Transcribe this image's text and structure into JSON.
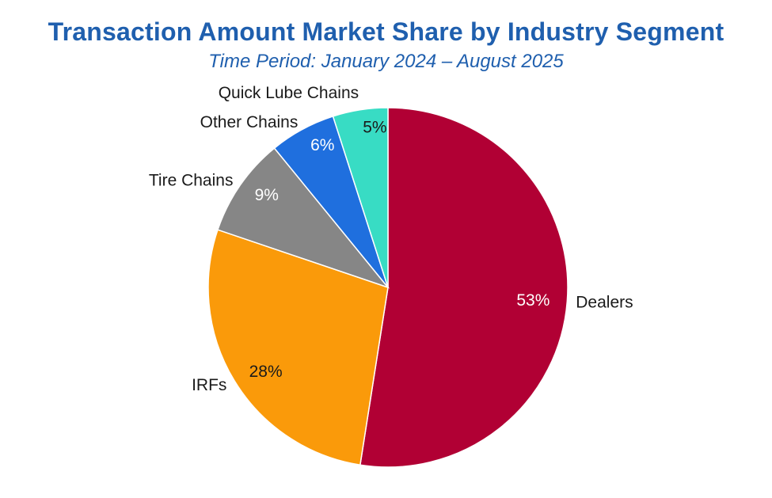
{
  "chart_data": {
    "type": "pie",
    "title": "Transaction Amount Market Share by Industry Segment",
    "subtitle": "Time Period: January 2024 – August 2025",
    "start": "top",
    "direction": "clockwise",
    "slices": [
      {
        "name": "Dealers",
        "value": 53,
        "label": "53%",
        "color": "#b10034",
        "label_color": "#ffffff"
      },
      {
        "name": "IRFs",
        "value": 28,
        "label": "28%",
        "color": "#fa9a0a",
        "label_color": "#1a1a1a"
      },
      {
        "name": "Tire Chains",
        "value": 9,
        "label": "9%",
        "color": "#868686",
        "label_color": "#ffffff"
      },
      {
        "name": "Other Chains",
        "value": 6,
        "label": "6%",
        "color": "#1f6fde",
        "label_color": "#ffffff"
      },
      {
        "name": "Quick Lube Chains",
        "value": 5,
        "label": "5%",
        "color": "#38dcc4",
        "label_color": "#1a1a1a"
      }
    ]
  }
}
